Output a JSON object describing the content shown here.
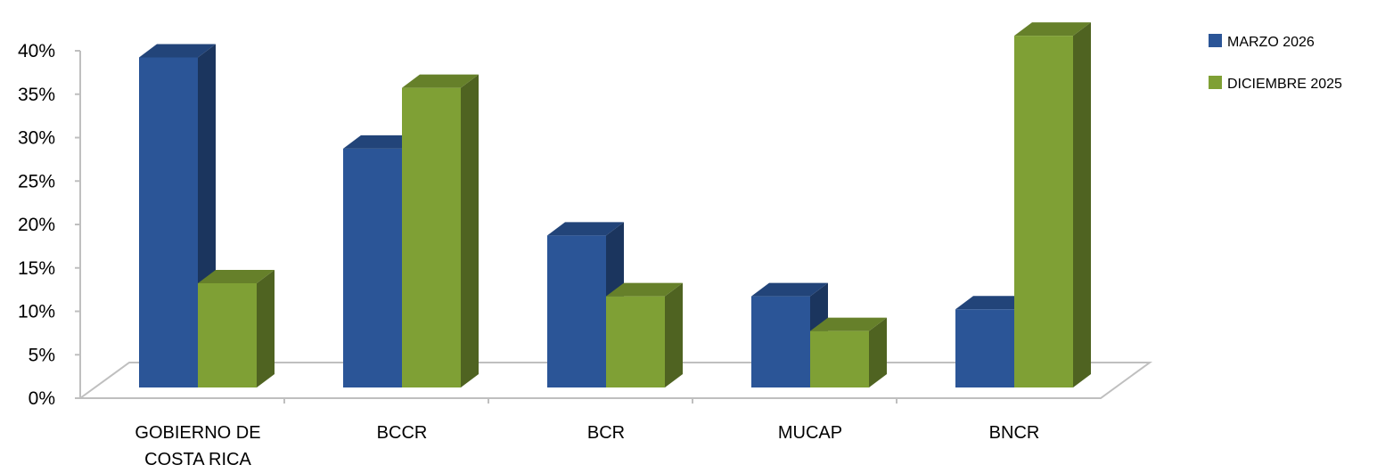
{
  "chart_data": {
    "type": "bar",
    "categories": [
      [
        "GOBIERNO DE",
        "COSTA RICA"
      ],
      [
        "BCCR"
      ],
      [
        "BCR"
      ],
      [
        "MUCAP"
      ],
      [
        "BNCR"
      ]
    ],
    "series": [
      {
        "name": "MARZO 2026",
        "values": [
          38,
          27.5,
          17.5,
          10.5,
          9
        ],
        "color": "#2B5597"
      },
      {
        "name": "DICIEMBRE 2025",
        "values": [
          12,
          34.5,
          10.5,
          6.5,
          40.5
        ],
        "color": "#7FA035"
      }
    ],
    "ylim": [
      0,
      40
    ],
    "yticks": [
      0,
      5,
      10,
      15,
      20,
      25,
      30,
      35,
      40
    ],
    "ytick_labels": [
      "0%",
      "5%",
      "10%",
      "15%",
      "20%",
      "25%",
      "30%",
      "35%",
      "40%"
    ],
    "legend_position": "top-right",
    "grid": false,
    "style": "3d-clustered-column"
  }
}
